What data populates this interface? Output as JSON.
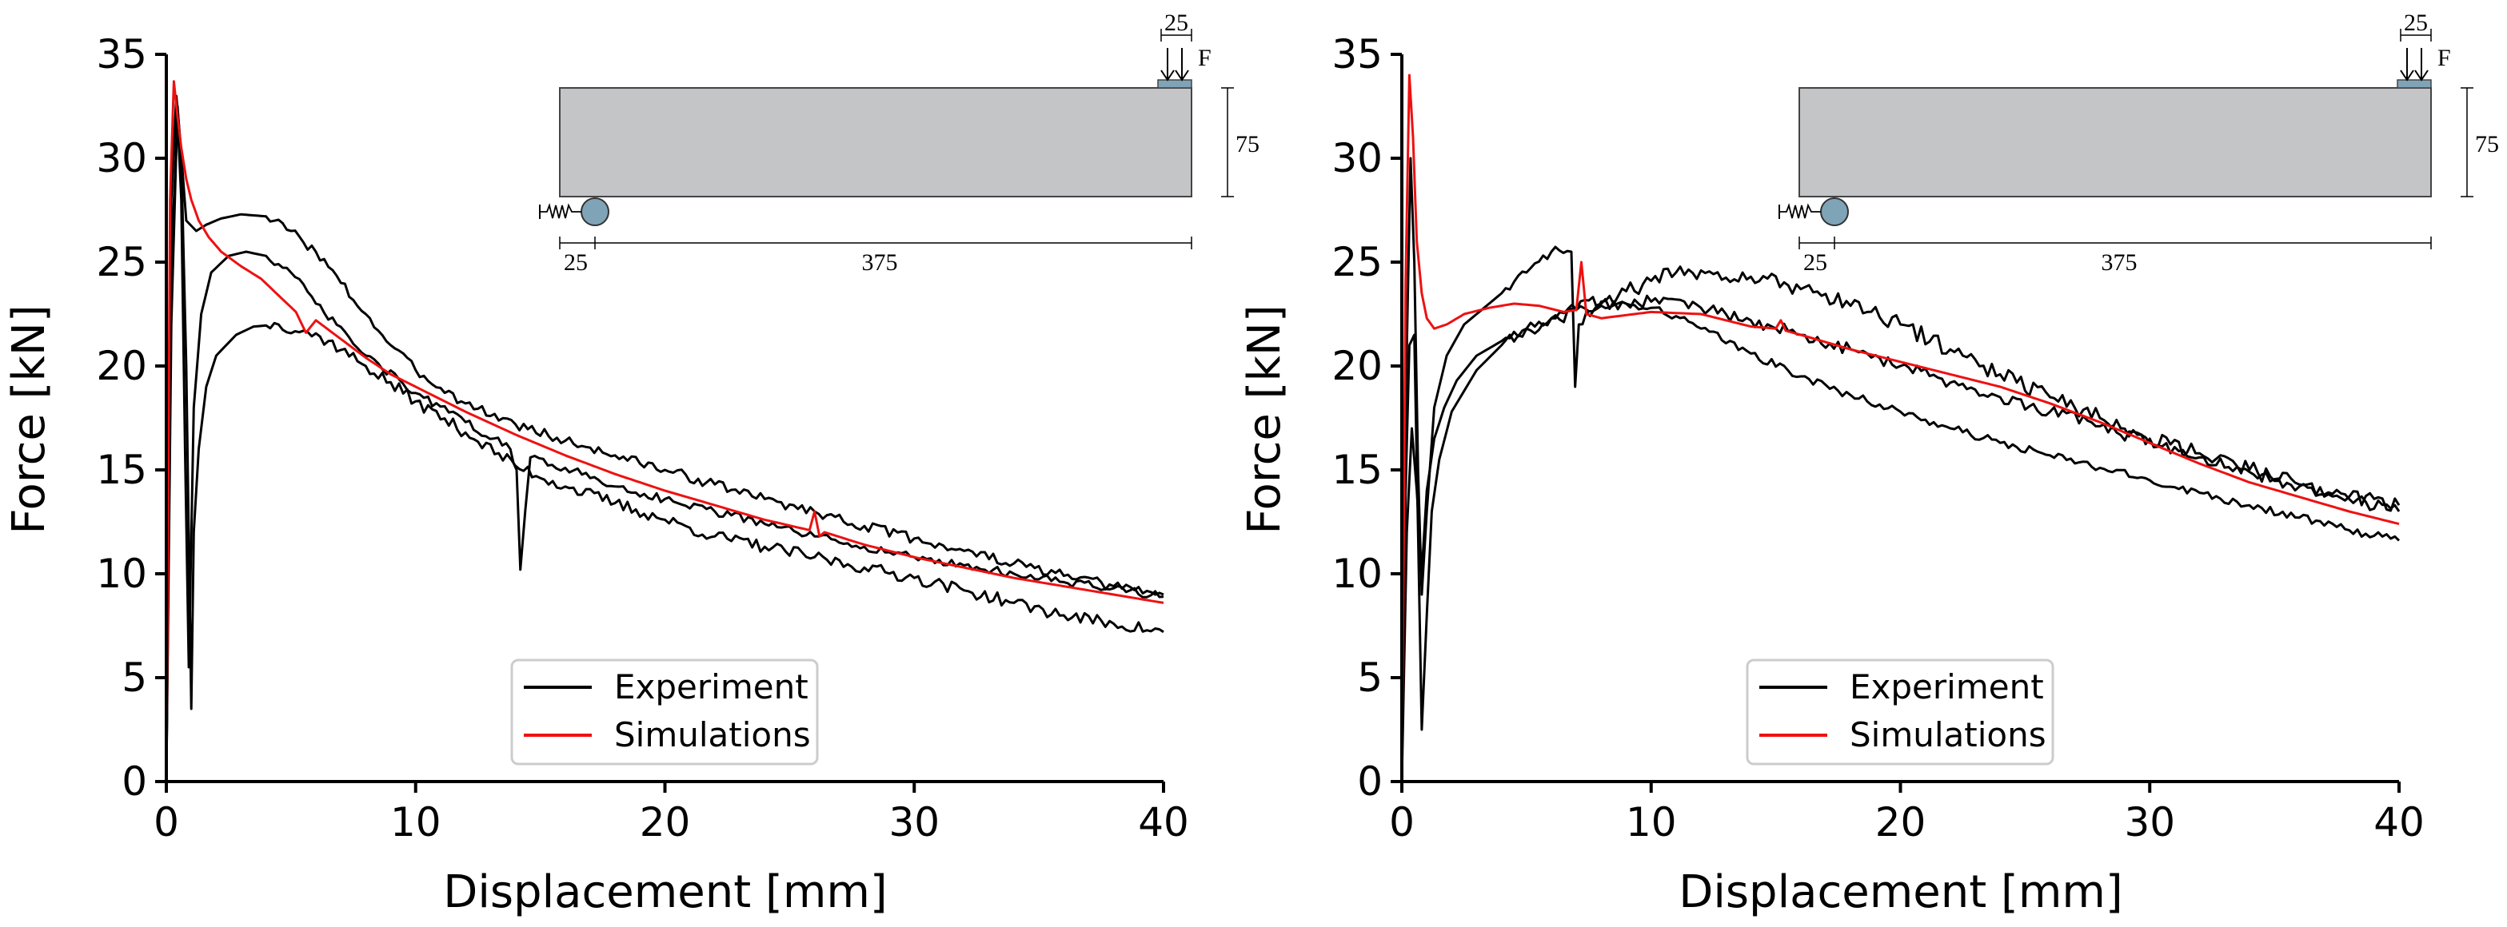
{
  "chart_data": [
    {
      "type": "line",
      "xlabel": "Displacement [mm]",
      "ylabel": "Force [kN]",
      "xlim": [
        0,
        40
      ],
      "ylim": [
        0,
        35
      ],
      "xticks": [
        "0",
        "10",
        "20",
        "30",
        "40"
      ],
      "yticks": [
        "0",
        "5",
        "10",
        "15",
        "20",
        "25",
        "30",
        "35"
      ],
      "legend": {
        "position": "bottom-center",
        "entries": [
          {
            "label": "Experiment",
            "color": "#000000"
          },
          {
            "label": "Simulations",
            "color": "#ee1111"
          }
        ]
      },
      "inset": {
        "support_dist": "25",
        "span": "375",
        "height": "75",
        "load_width": "25",
        "load_label": "F"
      },
      "series": [
        {
          "name": "Experiment",
          "color": "#000000",
          "noise": 0.25,
          "x": [
            0,
            0.2,
            0.4,
            0.55,
            0.8,
            1.2,
            1.6,
            2.2,
            3,
            4,
            5,
            6,
            7,
            8,
            9,
            10,
            12,
            14,
            16,
            18,
            20,
            22,
            24,
            26,
            28,
            30,
            32,
            34,
            36,
            38,
            40
          ],
          "y": [
            0,
            28,
            33,
            31,
            27,
            26.5,
            26.8,
            27.1,
            27.3,
            27.2,
            26.5,
            25.5,
            24,
            22.5,
            21,
            19.8,
            18.2,
            17.2,
            16.4,
            15.7,
            15,
            14.3,
            13.6,
            13,
            12.3,
            11.7,
            11.1,
            10.5,
            9.9,
            9.4,
            9.0
          ]
        },
        {
          "name": "Experiment",
          "color": "#000000",
          "noise": 0.2,
          "x": [
            0,
            0.2,
            0.45,
            0.6,
            0.75,
            0.9,
            1.1,
            1.4,
            1.8,
            2.5,
            3.2,
            4,
            5,
            6,
            8,
            10,
            12,
            13.8,
            14.05,
            14.2,
            14.6,
            16,
            18,
            20,
            22,
            24,
            26,
            28,
            30,
            32,
            34,
            36,
            38,
            40
          ],
          "y": [
            0,
            25,
            32,
            28,
            16,
            5.5,
            18,
            22.5,
            24.5,
            25.3,
            25.5,
            25.3,
            24.5,
            23,
            20.5,
            18.7,
            17.3,
            16,
            15,
            10.2,
            15.6,
            15.1,
            14.2,
            13.6,
            13,
            12.4,
            11.8,
            11.3,
            10.8,
            10.4,
            10.0,
            9.6,
            9.3,
            8.9
          ]
        },
        {
          "name": "Experiment",
          "color": "#000000",
          "noise": 0.3,
          "x": [
            0,
            0.2,
            0.45,
            0.6,
            0.8,
            1.0,
            1.1,
            1.3,
            1.6,
            2,
            2.8,
            3.5,
            4.5,
            5.5,
            6.5,
            8,
            10,
            12,
            14,
            16,
            18,
            20,
            22,
            24,
            26,
            28,
            30,
            32,
            34,
            36,
            38,
            40
          ],
          "y": [
            0,
            22,
            32.5,
            30,
            20,
            3.5,
            12,
            16,
            19,
            20.5,
            21.5,
            21.9,
            22,
            21.7,
            21.2,
            20,
            18.3,
            16.8,
            15.2,
            14.2,
            13.4,
            12.6,
            11.8,
            11.3,
            10.8,
            10.3,
            9.8,
            9.2,
            8.6,
            8.0,
            7.6,
            7.2
          ]
        },
        {
          "name": "Simulations",
          "color": "#ee1111",
          "noise": 0,
          "x": [
            0,
            0.15,
            0.3,
            0.45,
            0.6,
            0.8,
            1,
            1.3,
            1.7,
            2.2,
            3,
            3.8,
            4.5,
            5.2,
            5.6,
            6,
            7,
            8,
            9,
            10,
            12,
            14,
            16,
            18,
            20,
            22,
            24,
            25.8,
            26,
            26.2,
            26.4,
            28,
            30,
            32,
            34,
            36,
            38,
            40
          ],
          "y": [
            0,
            28,
            33.7,
            32,
            30.5,
            29,
            28,
            27,
            26.2,
            25.5,
            24.8,
            24.2,
            23.4,
            22.6,
            21.6,
            22.2,
            21.3,
            20.4,
            19.6,
            19,
            17.8,
            16.7,
            15.7,
            14.8,
            14,
            13.3,
            12.6,
            12.1,
            13,
            11.8,
            12.0,
            11.4,
            10.8,
            10.3,
            9.8,
            9.4,
            9.0,
            8.6
          ]
        }
      ]
    },
    {
      "type": "line",
      "xlabel": "Displacement [mm]",
      "ylabel": "Force [kN]",
      "xlim": [
        0,
        40
      ],
      "ylim": [
        0,
        35
      ],
      "xticks": [
        "0",
        "10",
        "20",
        "30",
        "40"
      ],
      "yticks": [
        "0",
        "5",
        "10",
        "15",
        "20",
        "25",
        "30",
        "35"
      ],
      "legend": {
        "position": "bottom-center",
        "entries": [
          {
            "label": "Experiment",
            "color": "#000000"
          },
          {
            "label": "Simulations",
            "color": "#ee1111"
          }
        ]
      },
      "inset": {
        "support_dist": "25",
        "span": "375",
        "height": "75",
        "load_width": "25",
        "load_label": "F"
      },
      "series": [
        {
          "name": "Experiment",
          "color": "#000000",
          "noise": 0.3,
          "x": [
            0,
            0.15,
            0.35,
            0.5,
            0.65,
            0.8,
            1,
            1.3,
            1.8,
            2.5,
            3.5,
            5,
            6,
            6.8,
            6.95,
            7.1,
            7.4,
            8,
            9,
            10,
            11,
            12,
            13,
            14,
            16,
            18,
            20,
            22,
            24,
            26,
            28,
            30,
            32,
            34,
            36,
            38,
            40
          ],
          "y": [
            0,
            18,
            30,
            25,
            15,
            9,
            13,
            18,
            20.5,
            22,
            23,
            24.5,
            25.5,
            25.5,
            19,
            22,
            22.6,
            23,
            23,
            23.1,
            23.2,
            22.8,
            22.5,
            22.2,
            21.5,
            20.8,
            20,
            19.2,
            18.5,
            17.8,
            17.1,
            16.3,
            15.6,
            14.9,
            14.2,
            13.6,
            13.0
          ]
        },
        {
          "name": "Experiment",
          "color": "#000000",
          "noise": 0.4,
          "x": [
            0,
            0.15,
            0.3,
            0.5,
            0.65,
            0.8,
            1.0,
            1.2,
            1.5,
            2,
            3,
            4,
            5,
            6,
            7,
            8,
            9,
            10,
            11,
            12,
            14,
            16,
            18,
            20,
            22,
            24,
            26,
            28,
            30,
            32,
            34,
            36,
            38,
            40
          ],
          "y": [
            0,
            14,
            21,
            21.5,
            12,
            2.5,
            8,
            13,
            15.5,
            17.8,
            19.8,
            21,
            21.8,
            22.3,
            22.7,
            23.1,
            23.6,
            24.1,
            24.5,
            24.6,
            24.3,
            23.7,
            22.9,
            22,
            20.8,
            19.6,
            18.5,
            17.5,
            16.5,
            15.8,
            15.0,
            14.3,
            13.7,
            13.3
          ]
        },
        {
          "name": "Experiment",
          "color": "#000000",
          "noise": 0.2,
          "x": [
            0,
            0.2,
            0.4,
            0.6,
            0.8,
            1.0,
            1.3,
            1.7,
            2.2,
            3,
            4,
            5,
            6,
            7,
            8,
            9,
            10,
            11,
            12,
            14,
            16,
            18,
            20,
            22,
            24,
            26,
            28,
            30,
            32,
            34,
            36,
            38,
            40
          ],
          "y": [
            0,
            12,
            17,
            14,
            10,
            14,
            16.5,
            18,
            19.3,
            20.5,
            21.2,
            21.8,
            22.3,
            22.7,
            22.9,
            23,
            22.8,
            22.4,
            21.8,
            20.6,
            19.5,
            18.6,
            17.8,
            17,
            16.3,
            15.7,
            15.1,
            14.5,
            13.9,
            13.3,
            12.7,
            12.1,
            11.6
          ]
        },
        {
          "name": "Simulations",
          "color": "#ee1111",
          "noise": 0,
          "x": [
            0,
            0.15,
            0.3,
            0.45,
            0.6,
            0.8,
            1,
            1.3,
            1.8,
            2.5,
            3.5,
            4.5,
            5.5,
            6.5,
            7,
            7.2,
            7.4,
            8,
            10,
            12,
            13,
            14,
            15,
            15.2,
            15.4,
            16,
            18,
            20,
            22,
            24,
            26,
            28,
            30,
            32,
            34,
            36,
            38,
            40
          ],
          "y": [
            0,
            24,
            34,
            31,
            26,
            23.5,
            22.3,
            21.8,
            22,
            22.5,
            22.8,
            23,
            22.9,
            22.6,
            22.7,
            25,
            22.5,
            22.3,
            22.6,
            22.5,
            22.2,
            21.9,
            21.8,
            22.2,
            21.7,
            21.5,
            20.8,
            20.2,
            19.6,
            19,
            18.2,
            17.3,
            16.3,
            15.3,
            14.4,
            13.7,
            13.0,
            12.4
          ]
        }
      ]
    }
  ]
}
